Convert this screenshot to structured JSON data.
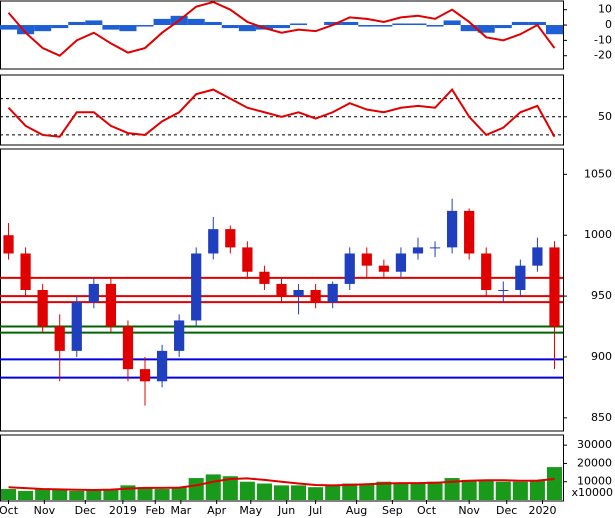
{
  "chart_data": [
    {
      "type": "macd",
      "ylim": [
        -28,
        15
      ],
      "yticks": [
        10,
        0,
        -10,
        -20
      ],
      "histogram_color": "#1f5fd6",
      "line_color": "#e00000",
      "histogram": [
        -3,
        -6,
        -4,
        -2,
        2,
        3,
        -3,
        -4,
        -1,
        4,
        6,
        4,
        2,
        -2,
        -4,
        -3,
        -2,
        1,
        0,
        2,
        2,
        -1,
        -1,
        1,
        1,
        -1,
        3,
        -4,
        -5,
        -2,
        2,
        2,
        -6
      ],
      "values": [
        8,
        -5,
        -15,
        -20,
        -10,
        -5,
        -12,
        -18,
        -15,
        -5,
        3,
        12,
        15,
        10,
        2,
        -2,
        -5,
        -3,
        -4,
        0,
        5,
        4,
        2,
        5,
        6,
        4,
        10,
        2,
        -8,
        -10,
        -6,
        0,
        -15
      ]
    },
    {
      "type": "line",
      "ylim": [
        20,
        95
      ],
      "yticks": [
        50
      ],
      "color": "#e00000",
      "levels": [
        {
          "value": 70,
          "color": "#000"
        },
        {
          "value": 50,
          "color": "#000"
        },
        {
          "value": 30,
          "color": "#000"
        }
      ],
      "values": [
        60,
        40,
        30,
        28,
        55,
        55,
        40,
        32,
        30,
        45,
        55,
        75,
        80,
        70,
        60,
        55,
        50,
        55,
        48,
        55,
        65,
        58,
        55,
        60,
        62,
        60,
        80,
        50,
        30,
        38,
        55,
        62,
        28
      ]
    },
    {
      "type": "candlestick",
      "ylim": [
        840,
        1070
      ],
      "yticks": [
        1050,
        1000,
        950,
        900,
        850
      ],
      "up_color": "#1f3fbf",
      "down_color": "#e00000",
      "open": [
        1000,
        985,
        955,
        925,
        905,
        945,
        960,
        925,
        890,
        880,
        905,
        930,
        985,
        1005,
        990,
        970,
        960,
        950,
        955,
        945,
        960,
        985,
        975,
        970,
        985,
        990,
        990,
        1020,
        985,
        955,
        955,
        975,
        990
      ],
      "close": [
        985,
        955,
        925,
        905,
        945,
        960,
        925,
        890,
        880,
        905,
        930,
        985,
        1005,
        990,
        970,
        960,
        950,
        955,
        945,
        960,
        985,
        975,
        970,
        985,
        990,
        990,
        1020,
        985,
        955,
        955,
        975,
        990,
        925
      ],
      "high": [
        1010,
        990,
        960,
        935,
        950,
        965,
        965,
        930,
        900,
        910,
        935,
        990,
        1015,
        1008,
        995,
        975,
        965,
        960,
        960,
        962,
        990,
        990,
        980,
        990,
        998,
        995,
        1030,
        1022,
        990,
        962,
        980,
        998,
        995
      ],
      "low": [
        980,
        950,
        920,
        880,
        900,
        940,
        920,
        880,
        860,
        875,
        900,
        925,
        980,
        985,
        965,
        955,
        945,
        935,
        940,
        940,
        955,
        965,
        965,
        965,
        980,
        982,
        985,
        980,
        950,
        945,
        950,
        970,
        890
      ],
      "levels": [
        {
          "value": 965,
          "color": "#e00000"
        },
        {
          "value": 950,
          "color": "#e00000"
        },
        {
          "value": 945,
          "color": "#e00000"
        },
        {
          "value": 925,
          "color": "#006400"
        },
        {
          "value": 920,
          "color": "#006400"
        },
        {
          "value": 898,
          "color": "#0000e0"
        },
        {
          "value": 883,
          "color": "#0000e0"
        }
      ]
    },
    {
      "type": "volume",
      "ylim": [
        0,
        35000
      ],
      "yticks": [
        30000,
        20000,
        10000
      ],
      "annotation": "x10000",
      "color": "#1a9a1a",
      "ma_color": "#e00000",
      "values": [
        6000,
        5000,
        6000,
        5500,
        5000,
        5500,
        6000,
        8000,
        7000,
        6000,
        7000,
        12000,
        14000,
        13000,
        10000,
        9000,
        8000,
        8000,
        7000,
        8000,
        9000,
        9000,
        10000,
        9000,
        9000,
        10000,
        12000,
        11000,
        11000,
        10000,
        10000,
        11000,
        18000
      ],
      "ma": [
        7000,
        6500,
        6000,
        5800,
        5600,
        5500,
        5700,
        6200,
        6600,
        6600,
        6800,
        8000,
        10000,
        11500,
        11800,
        11000,
        10000,
        9000,
        8200,
        8000,
        8300,
        8600,
        9000,
        9200,
        9200,
        9400,
        10000,
        10500,
        10800,
        10800,
        10500,
        10600,
        11500
      ],
      "xlim": [
        0,
        33
      ],
      "xticks": [
        {
          "value": 0.5,
          "label": "Oct"
        },
        {
          "value": 2.6,
          "label": "Nov"
        },
        {
          "value": 5,
          "label": "Dec"
        },
        {
          "value": 7.2,
          "label": "2019"
        },
        {
          "value": 9.1,
          "label": "Feb"
        },
        {
          "value": 10.6,
          "label": "Mar"
        },
        {
          "value": 12.7,
          "label": "Apr"
        },
        {
          "value": 14.7,
          "label": "May"
        },
        {
          "value": 16.8,
          "label": "Jun"
        },
        {
          "value": 18.5,
          "label": "Jul"
        },
        {
          "value": 20.9,
          "label": "Aug"
        },
        {
          "value": 23,
          "label": "Sep"
        },
        {
          "value": 25,
          "label": "Oct"
        },
        {
          "value": 27.5,
          "label": "Nov"
        },
        {
          "value": 29.7,
          "label": "Dec"
        },
        {
          "value": 31.8,
          "label": "2020"
        }
      ]
    }
  ]
}
